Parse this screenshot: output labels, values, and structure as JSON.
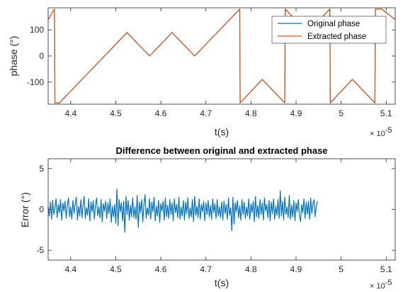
{
  "chart_data": [
    {
      "type": "line",
      "title": "",
      "xlabel": "t(s)",
      "ylabel": "phase (°)",
      "x_exponent_base": "× 10",
      "x_exponent_power": "-5",
      "xlim": [
        4.35,
        5.12
      ],
      "ylim": [
        -185,
        185
      ],
      "xticks": [
        4.4,
        4.5,
        4.6,
        4.7,
        4.8,
        4.9,
        5.0,
        5.1
      ],
      "xtick_labels": [
        "4.4",
        "4.5",
        "4.6",
        "4.7",
        "4.8",
        "4.9",
        "5",
        "5.1"
      ],
      "yticks": [
        -100,
        0,
        100
      ],
      "ytick_labels": [
        "-100",
        "0",
        "100"
      ],
      "grid": false,
      "legend_location": "top-right",
      "series": [
        {
          "name": "Original phase",
          "color": "#0072BD",
          "x": [
            4.35,
            4.364,
            4.365,
            4.375,
            4.525,
            4.575,
            4.625,
            4.675,
            4.775,
            4.776,
            4.825,
            4.875,
            4.876,
            4.925,
            4.975,
            4.976,
            5.025,
            5.075,
            5.076,
            5.09,
            5.12
          ],
          "y": [
            140,
            180,
            -180,
            -180,
            90,
            0,
            90,
            0,
            180,
            -180,
            -90,
            -180,
            180,
            90,
            180,
            -180,
            -90,
            -180,
            180,
            180,
            140
          ]
        },
        {
          "name": "Extracted phase",
          "color": "#D95319",
          "x": [
            4.35,
            4.364,
            4.365,
            4.375,
            4.525,
            4.575,
            4.625,
            4.675,
            4.775,
            4.776,
            4.825,
            4.875,
            4.876,
            4.925,
            4.975,
            4.976,
            5.025,
            5.075,
            5.076,
            5.09,
            5.12
          ],
          "y": [
            140,
            180,
            -180,
            -180,
            90,
            0,
            90,
            0,
            180,
            -180,
            -90,
            -180,
            180,
            90,
            180,
            -180,
            -90,
            -180,
            180,
            180,
            140
          ]
        }
      ]
    },
    {
      "type": "line",
      "title": "Difference between original and extracted phase",
      "xlabel": "t(s)",
      "ylabel": "Error (°)",
      "x_exponent_base": "× 10",
      "x_exponent_power": "-5",
      "xlim": [
        4.35,
        5.12
      ],
      "ylim": [
        -6.2,
        6.2
      ],
      "xticks": [
        4.4,
        4.5,
        4.6,
        4.7,
        4.8,
        4.9,
        5.0,
        5.1
      ],
      "xtick_labels": [
        "4.4",
        "4.5",
        "4.6",
        "4.7",
        "4.8",
        "4.9",
        "5",
        "5.1"
      ],
      "yticks": [
        -5,
        0,
        5
      ],
      "ytick_labels": [
        "-5",
        "0",
        "5"
      ],
      "grid": false,
      "series": [
        {
          "color": "#0072BD",
          "x_start": 4.35,
          "x_step": 0.0025,
          "y": [
            0.3,
            -0.8,
            0.9,
            -1.2,
            1.1,
            -0.6,
            0.2,
            1.3,
            -1.0,
            0.6,
            -0.4,
            1.2,
            -1.3,
            0.8,
            -0.2,
            1.0,
            -1.1,
            0.5,
            1.4,
            -0.9,
            0.3,
            -1.2,
            1.1,
            -0.5,
            0.7,
            1.5,
            -1.3,
            0.4,
            -0.8,
            1.2,
            -1.0,
            0.6,
            1.6,
            -1.1,
            0.2,
            -0.7,
            1.3,
            -1.4,
            0.9,
            -0.3,
            1.1,
            -1.2,
            0.5,
            1.4,
            -0.8,
            0.3,
            -1.0,
            1.2,
            -1.5,
            0.7,
            -0.2,
            1.0,
            -1.1,
            0.8,
            -0.5,
            1.3,
            -1.6,
            0.4,
            -0.9,
            0.6,
            -1.7,
            2.5,
            -2.0,
            1.2,
            -0.3,
            0.8,
            -1.4,
            1.0,
            -2.8,
            1.6,
            -0.6,
            1.1,
            -1.3,
            0.5,
            -0.9,
            1.4,
            -1.0,
            0.3,
            -1.2,
            1.7,
            -2.2,
            0.9,
            -0.4,
            1.2,
            -1.5,
            0.6,
            1.8,
            -1.1,
            0.2,
            -0.7,
            1.3,
            -1.2,
            0.9,
            -0.3,
            1.5,
            -1.4,
            0.4,
            -0.8,
            1.1,
            -1.6,
            0.7,
            -0.2,
            1.0,
            -1.3,
            1.4,
            -0.9,
            0.5,
            -1.1,
            1.2,
            -0.6,
            0.8,
            -1.4,
            1.3,
            -0.4,
            0.6,
            -1.0,
            1.5,
            -1.2,
            0.3,
            -0.8,
            1.1,
            -1.3,
            0.9,
            -0.5,
            1.4,
            -1.1,
            0.2,
            -0.9,
            1.2,
            -1.5,
            1.6,
            -0.7,
            0.4,
            -1.0,
            1.3,
            -1.2,
            0.6,
            -0.3,
            1.0,
            -1.4,
            0.8,
            -0.6,
            1.1,
            -0.9,
            0.5,
            -1.2,
            1.3,
            -0.4,
            0.7,
            -1.1,
            1.2,
            -0.8,
            0.3,
            -1.0,
            0.9,
            -1.3,
            1.0,
            -0.5,
            0.6,
            -1.2,
            1.4,
            -0.7,
            0.2,
            -2.6,
            1.5,
            -1.8,
            0.8,
            -0.3,
            1.1,
            -1.0,
            0.4,
            -1.3,
            1.2,
            -0.6,
            0.9,
            -1.1,
            0.3,
            -0.8,
            1.3,
            -1.2,
            0.7,
            -0.4,
            1.0,
            -1.5,
            1.6,
            -0.9,
            0.5,
            -1.1,
            1.2,
            -0.6,
            0.8,
            -1.3,
            1.4,
            -0.2,
            0.6,
            -1.0,
            1.1,
            -1.4,
            0.9,
            -0.5,
            1.3,
            -1.2,
            0.4,
            -0.7,
            1.2,
            -1.1,
            2.3,
            -0.8,
            1.0,
            -1.3,
            1.5,
            -0.6,
            0.3,
            -1.0,
            1.7,
            -1.2,
            0.5,
            -0.9,
            1.1,
            -1.4,
            0.8,
            -0.3,
            1.2,
            -0.7,
            -1.5,
            0.6,
            -0.4,
            1.3,
            -1.1,
            0.9,
            -0.6,
            1.0,
            -1.2,
            1.4,
            -0.5,
            0.7,
            1.2,
            -0.9,
            0.4,
            1.0
          ]
        }
      ]
    }
  ]
}
